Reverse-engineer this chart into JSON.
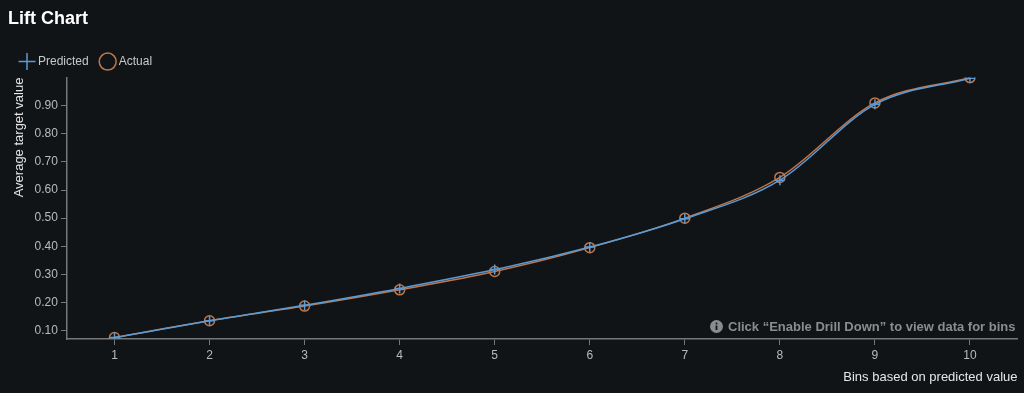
{
  "chart_data": {
    "type": "line",
    "title": "Lift Chart",
    "xlabel": "Bins based on predicted value",
    "ylabel": "Average target value",
    "x": [
      1,
      2,
      3,
      4,
      5,
      6,
      7,
      8,
      9,
      10
    ],
    "series": [
      {
        "name": "Predicted",
        "color": "#5b9bd5",
        "marker": "cross",
        "values": [
          0.075,
          0.135,
          0.19,
          0.25,
          0.317,
          0.397,
          0.498,
          0.635,
          0.905,
          0.998
        ]
      },
      {
        "name": "Actual",
        "color": "#c0764a",
        "marker": "circle",
        "values": [
          0.075,
          0.135,
          0.187,
          0.245,
          0.31,
          0.395,
          0.5,
          0.645,
          0.91,
          1.0
        ]
      }
    ],
    "xlim": [
      0.5,
      10.5
    ],
    "xticks": [
      1,
      2,
      3,
      4,
      5,
      6,
      7,
      8,
      9,
      10
    ],
    "ylim": [
      0.07,
      1.0
    ],
    "yticks": [
      {
        "value": 0.1,
        "label": "0.10"
      },
      {
        "value": 0.2,
        "label": "0.20"
      },
      {
        "value": 0.3,
        "label": "0.30"
      },
      {
        "value": 0.4,
        "label": "0.40"
      },
      {
        "value": 0.5,
        "label": "0.50"
      },
      {
        "value": 0.6,
        "label": "0.60"
      },
      {
        "value": 0.7,
        "label": "0.70"
      },
      {
        "value": 0.8,
        "label": "0.80"
      },
      {
        "value": 0.9,
        "label": "0.90"
      }
    ],
    "grid": false,
    "legend": "top left",
    "annotations": [
      "Click “Enable Drill Down” to view data for bins"
    ]
  }
}
